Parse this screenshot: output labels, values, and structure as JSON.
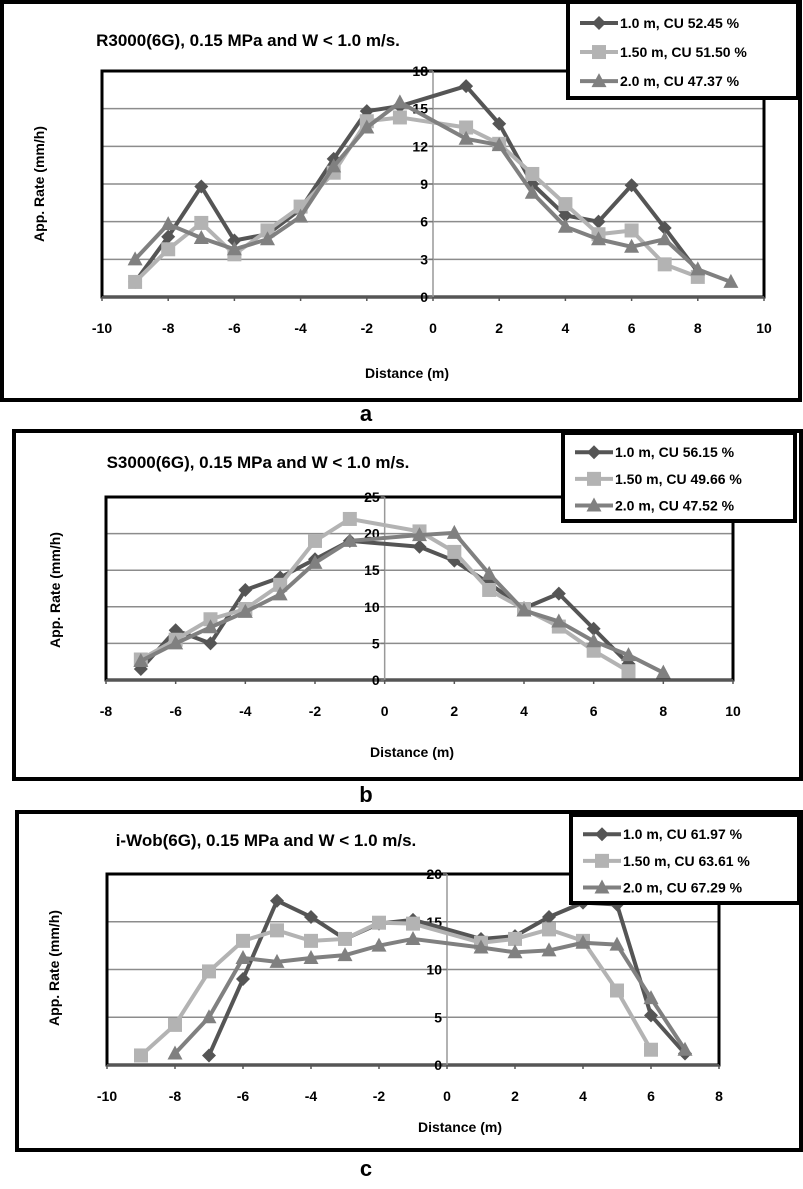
{
  "chart_data": [
    {
      "type": "line",
      "panel_label": "a",
      "title": "R3000(6G), 0.15 MPa and W < 1.0 m/s.",
      "xlabel": "Distance (m)",
      "ylabel": "App. Rate (mm/h)",
      "xlim": [
        -10,
        10
      ],
      "ylim": [
        0,
        18
      ],
      "xticks": [
        -10,
        -8,
        -6,
        -4,
        -2,
        0,
        2,
        4,
        6,
        8,
        10
      ],
      "yticks": [
        0,
        3,
        6,
        9,
        12,
        15,
        18
      ],
      "grid": "horizontal",
      "legend_position": "top-right",
      "series": [
        {
          "name": "1.0 m, CU 52.45 %",
          "marker": "diamond",
          "color": "#555555",
          "x": [
            -9,
            -8,
            -7,
            -6,
            -5,
            -4,
            -3,
            -2,
            -1,
            1,
            2,
            3,
            4,
            5,
            6,
            7,
            8
          ],
          "y": [
            1.2,
            4.8,
            8.8,
            4.5,
            5.0,
            7.0,
            11.0,
            14.8,
            15.2,
            16.8,
            13.8,
            9.0,
            6.5,
            6.0,
            8.9,
            5.5,
            2.0
          ]
        },
        {
          "name": "1.50 m, CU 51.50 %",
          "marker": "square",
          "color": "#b3b3b3",
          "x": [
            -9,
            -8,
            -7,
            -6,
            -5,
            -4,
            -3,
            -2,
            -1,
            1,
            2,
            3,
            4,
            5,
            6,
            7,
            8
          ],
          "y": [
            1.2,
            3.8,
            5.9,
            3.4,
            5.3,
            7.2,
            9.9,
            14.0,
            14.3,
            13.5,
            12.2,
            9.8,
            7.4,
            5.0,
            5.3,
            2.6,
            1.6
          ]
        },
        {
          "name": "2.0 m, CU 47.37 %",
          "marker": "triangle",
          "color": "#808080",
          "x": [
            -9,
            -8,
            -7,
            -6,
            -5,
            -4,
            -3,
            -2,
            -1,
            1,
            2,
            3,
            4,
            5,
            6,
            7,
            8,
            9
          ],
          "y": [
            3.0,
            5.8,
            4.7,
            3.8,
            4.6,
            6.4,
            10.4,
            13.5,
            15.5,
            12.6,
            12.1,
            8.3,
            5.6,
            4.6,
            4.0,
            4.6,
            2.2,
            1.2
          ]
        }
      ]
    },
    {
      "type": "line",
      "panel_label": "b",
      "title": "S3000(6G), 0.15 MPa and W < 1.0 m/s.",
      "xlabel": "Distance (m)",
      "ylabel": "App. Rate (mm/h)",
      "xlim": [
        -8,
        10
      ],
      "ylim": [
        0,
        25
      ],
      "xticks": [
        -8,
        -6,
        -4,
        -2,
        0,
        2,
        4,
        6,
        8,
        10
      ],
      "yticks": [
        0,
        5,
        10,
        15,
        20,
        25
      ],
      "grid": "horizontal",
      "legend_position": "top-right",
      "series": [
        {
          "name": "1.0 m, CU 56.15 %",
          "marker": "diamond",
          "color": "#555555",
          "x": [
            -7,
            -6,
            -5,
            -4,
            -3,
            -2,
            -1,
            1,
            2,
            3,
            4,
            5,
            6,
            7
          ],
          "y": [
            1.5,
            6.8,
            5.0,
            12.3,
            14.0,
            16.5,
            19.0,
            18.2,
            16.3,
            13.2,
            9.8,
            11.8,
            7.0,
            2.2
          ]
        },
        {
          "name": "1.50 m, CU 49.66 %",
          "marker": "square",
          "color": "#b3b3b3",
          "x": [
            -7,
            -6,
            -5,
            -4,
            -3,
            -2,
            -1,
            1,
            2,
            3,
            4,
            5,
            6,
            7
          ],
          "y": [
            2.8,
            5.5,
            8.3,
            9.7,
            13.0,
            19.0,
            22.0,
            20.3,
            17.5,
            12.3,
            9.7,
            7.3,
            4.0,
            1.2
          ]
        },
        {
          "name": "2.0 m, CU 47.52 %",
          "marker": "triangle",
          "color": "#808080",
          "x": [
            -7,
            -6,
            -5,
            -4,
            -3,
            -2,
            -1,
            1,
            2,
            3,
            4,
            5,
            6,
            7,
            8
          ],
          "y": [
            2.6,
            5.0,
            7.2,
            9.3,
            11.7,
            16.0,
            19.0,
            19.8,
            20.1,
            14.5,
            9.5,
            8.0,
            5.3,
            3.4,
            1.0
          ]
        }
      ]
    },
    {
      "type": "line",
      "panel_label": "c",
      "title": "i-Wob(6G), 0.15 MPa and W < 1.0 m/s.",
      "xlabel": "Distance (m)",
      "ylabel": "App. Rate (mm/h)",
      "xlim": [
        -10,
        8
      ],
      "ylim": [
        0,
        20
      ],
      "xticks": [
        -10,
        -8,
        -6,
        -4,
        -2,
        0,
        2,
        4,
        6,
        8
      ],
      "yticks": [
        0,
        5,
        10,
        15,
        20
      ],
      "grid": "horizontal",
      "legend_position": "top-right",
      "series": [
        {
          "name": "1.0 m, CU 61.97 %",
          "marker": "diamond",
          "color": "#555555",
          "x": [
            -7,
            -6,
            -5,
            -4,
            -3,
            -2,
            -1,
            1,
            2,
            3,
            4,
            5,
            6,
            7
          ],
          "y": [
            1.0,
            9.0,
            17.2,
            15.5,
            13.2,
            14.8,
            15.2,
            13.2,
            13.5,
            15.5,
            17.0,
            16.8,
            5.2,
            1.2
          ]
        },
        {
          "name": "1.50 m, CU 63.61 %",
          "marker": "square",
          "color": "#b3b3b3",
          "x": [
            -9,
            -8,
            -7,
            -6,
            -5,
            -4,
            -3,
            -2,
            -1,
            1,
            2,
            3,
            4,
            5,
            6
          ],
          "y": [
            1.0,
            4.2,
            9.8,
            13.0,
            14.1,
            13.0,
            13.2,
            14.9,
            14.8,
            12.8,
            13.2,
            14.2,
            13.0,
            7.8,
            1.6
          ]
        },
        {
          "name": "2.0 m, CU 67.29 %",
          "marker": "triangle",
          "color": "#808080",
          "x": [
            -8,
            -7,
            -6,
            -5,
            -4,
            -3,
            -2,
            -1,
            1,
            2,
            3,
            4,
            5,
            6,
            7
          ],
          "y": [
            1.2,
            5.0,
            11.2,
            10.8,
            11.2,
            11.5,
            12.5,
            13.2,
            12.3,
            11.8,
            12.0,
            12.8,
            12.6,
            7.0,
            1.6
          ]
        }
      ]
    }
  ]
}
